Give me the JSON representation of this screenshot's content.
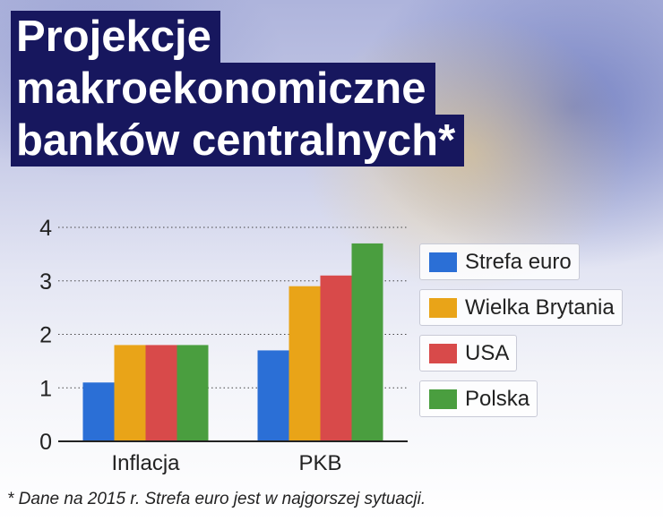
{
  "title_lines": [
    "Projekcje",
    "makroekonomiczne",
    "banków centralnych*"
  ],
  "footnote": "* Dane na 2015 r. Strefa euro jest w najgorszej sytuacji.",
  "chart_data": {
    "type": "bar",
    "title": "Projekcje makroekonomiczne banków centralnych*",
    "categories": [
      "Inflacja",
      "PKB"
    ],
    "series": [
      {
        "name": "Strefa euro",
        "color": "#2b6fd6",
        "values": [
          1.1,
          1.7
        ]
      },
      {
        "name": "Wielka Brytania",
        "color": "#e9a418",
        "values": [
          1.8,
          2.9
        ]
      },
      {
        "name": "USA",
        "color": "#d84a4a",
        "values": [
          1.8,
          3.1
        ]
      },
      {
        "name": "Polska",
        "color": "#4a9e3f",
        "values": [
          1.8,
          3.7
        ]
      }
    ],
    "y_ticks": [
      "0",
      "1",
      "2",
      "3",
      "4"
    ],
    "ylim": [
      0,
      4
    ],
    "xlabel": "",
    "ylabel": "",
    "grid": "horizontal dotted",
    "legend_position": "right"
  }
}
